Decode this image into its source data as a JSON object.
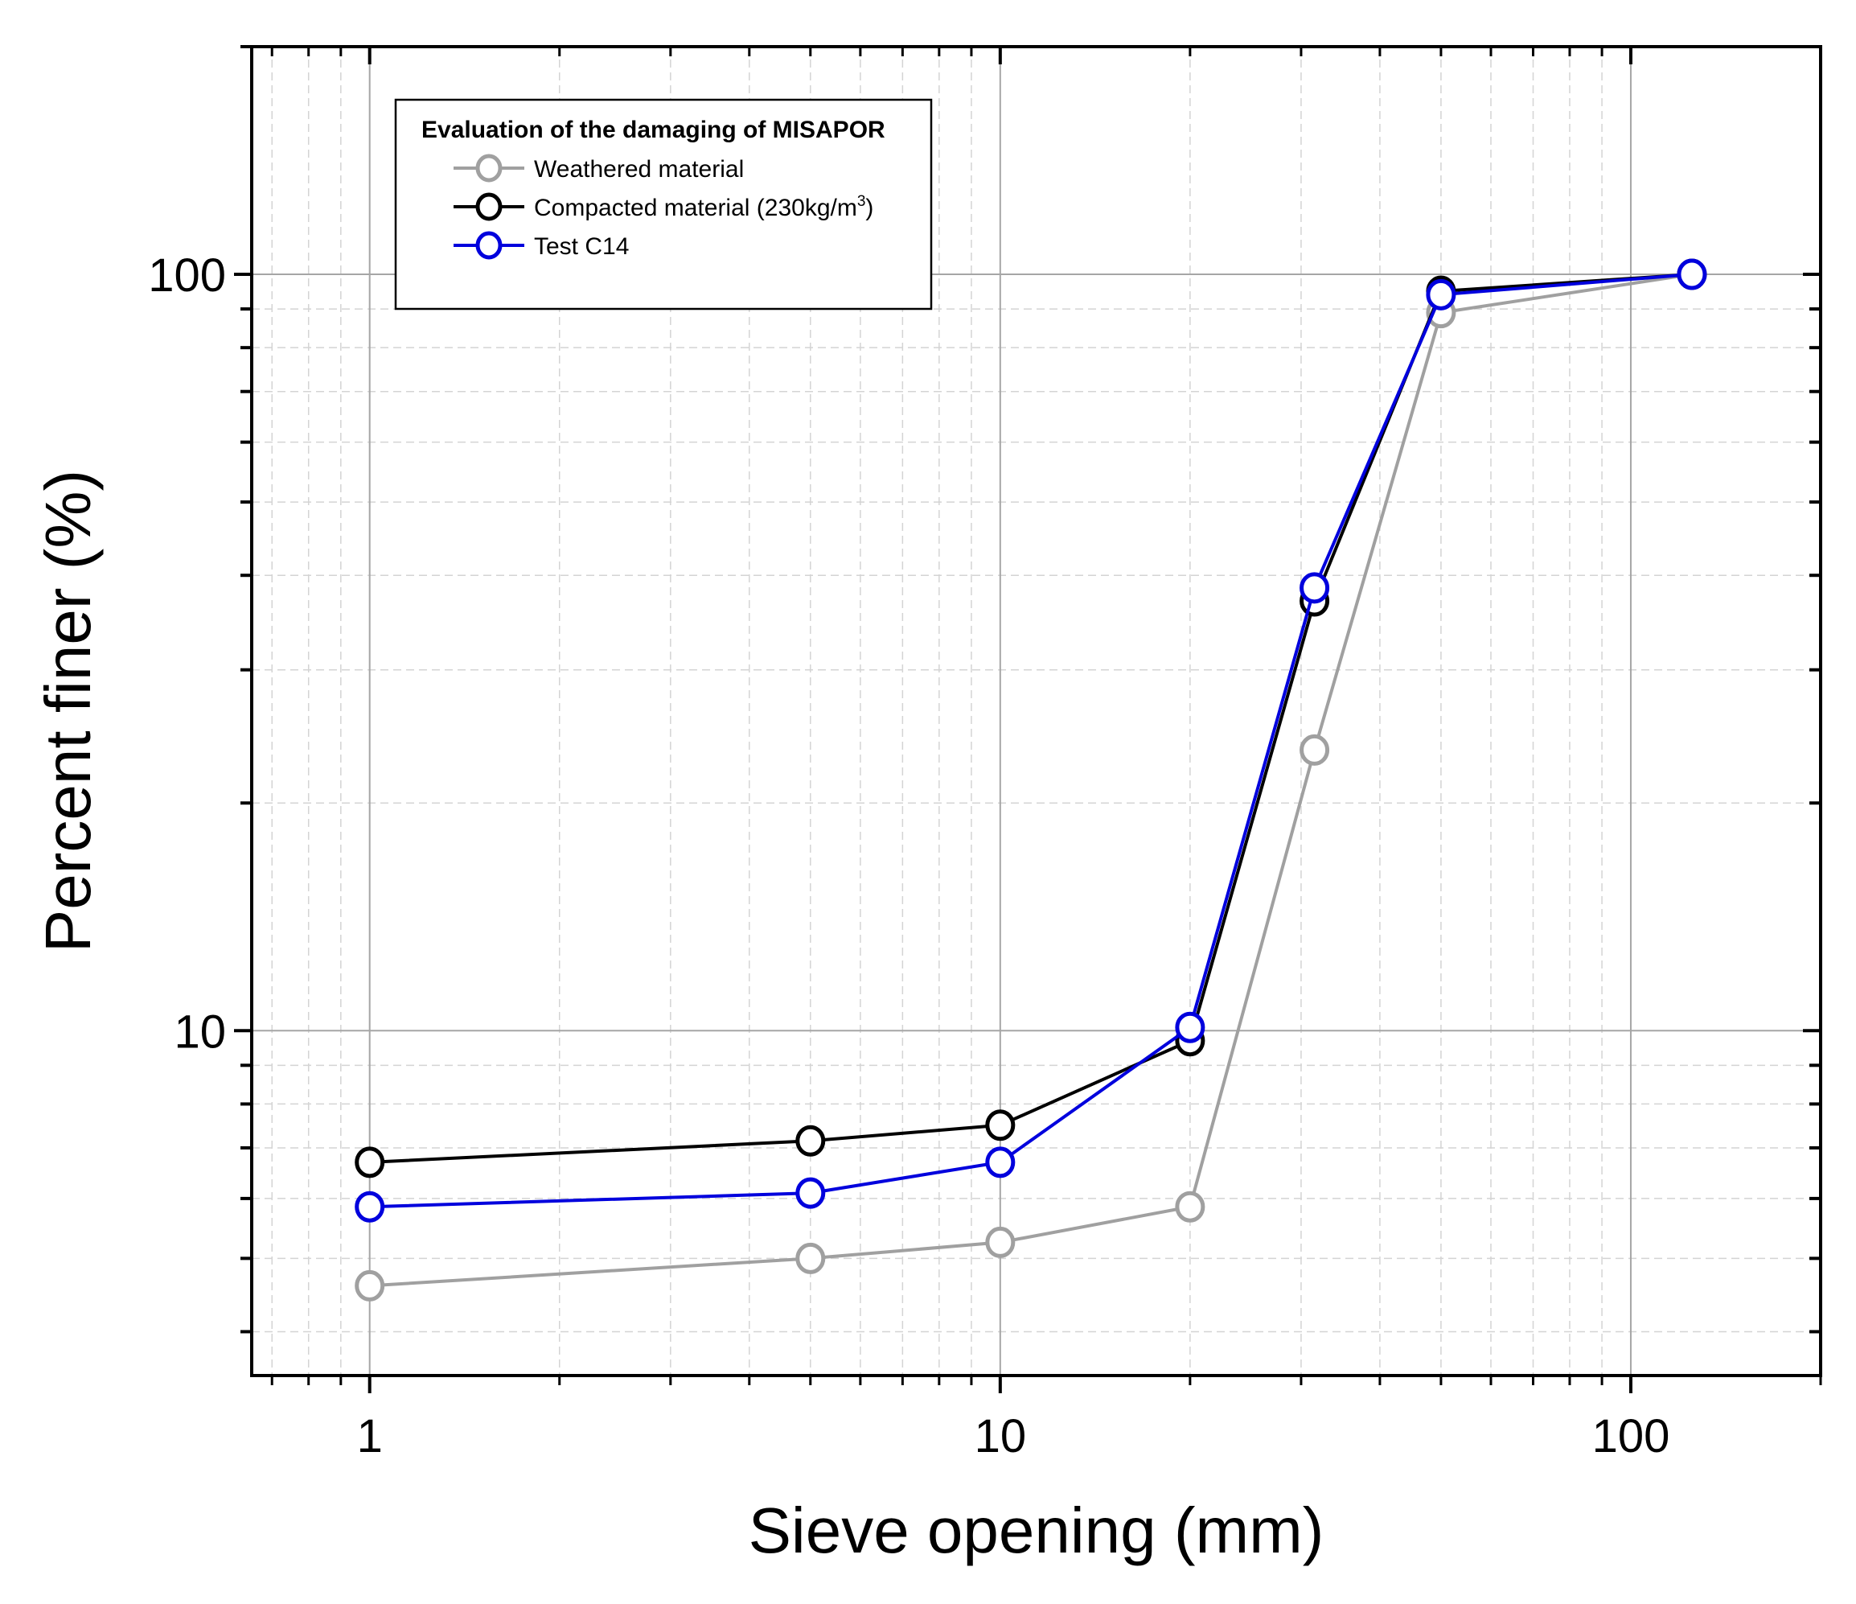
{
  "chart_data": {
    "type": "line",
    "title": "",
    "xlabel": "Sieve opening (mm)",
    "ylabel": "Percent finer (%)",
    "x_scale": "log",
    "y_scale": "log",
    "xlim": [
      0.65,
      200
    ],
    "ylim": [
      3.5,
      200
    ],
    "grid": true,
    "legend_placement": "top-left",
    "x_tick_labels": [
      "1",
      "10",
      "100"
    ],
    "y_tick_labels": [
      "10",
      "100"
    ],
    "legend": {
      "title": "Evaluation of the damaging of MISAPOR"
    },
    "series": [
      {
        "name": "Weathered material",
        "color": "#a0a0a0",
        "x": [
          1,
          5,
          10,
          20,
          31.5,
          50,
          125
        ],
        "y": [
          4.6,
          5.0,
          5.25,
          5.85,
          23.5,
          89,
          100
        ]
      },
      {
        "name": "Compacted material (230kg/m",
        "name_superscript": "3",
        "name_suffix": ")",
        "color": "#000000",
        "x": [
          1,
          5,
          10,
          20,
          31.5,
          50,
          125
        ],
        "y": [
          6.7,
          7.15,
          7.5,
          9.7,
          37,
          95,
          100
        ]
      },
      {
        "name": "Test C14",
        "color": "#0000dd",
        "x": [
          1,
          5,
          10,
          20,
          31.5,
          50,
          125
        ],
        "y": [
          5.85,
          6.1,
          6.7,
          10.1,
          38.5,
          94,
          100
        ]
      }
    ]
  }
}
